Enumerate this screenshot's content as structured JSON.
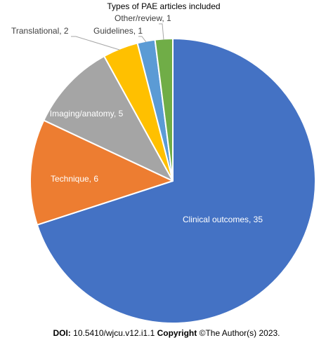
{
  "chart_data": {
    "type": "pie",
    "title": "Types of PAE articles included",
    "categories": [
      "Clinical outcomes",
      "Technique",
      "Imaging/anatomy",
      "Translational",
      "Guidelines",
      "Other/review"
    ],
    "values": [
      35,
      6,
      5,
      2,
      1,
      1
    ],
    "colors": [
      "#4472C4",
      "#ED7D31",
      "#A5A5A5",
      "#FFC000",
      "#5B9BD5",
      "#70AD47"
    ],
    "data_labels": [
      "Clinical outcomes, 35",
      "Technique, 6",
      "Imaging/anatomy, 5",
      "Translational, 2",
      "Guidelines, 1",
      "Other/review, 1"
    ],
    "start_angle_deg": 0,
    "direction": "clockwise"
  },
  "footer": {
    "doi_label": "DOI:",
    "doi_value": "10.5410/wjcu.v12.i1.1",
    "copyright_label": "Copyright",
    "copyright_text": "©The Author(s) 2023."
  }
}
